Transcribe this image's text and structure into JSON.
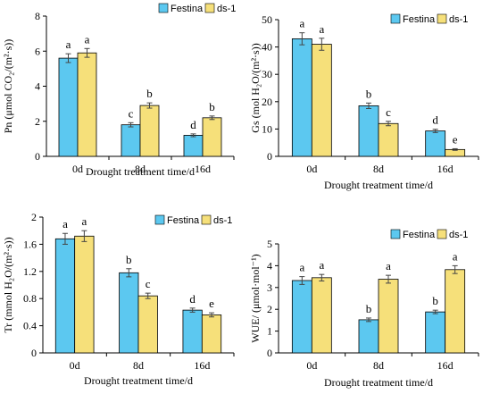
{
  "colors": {
    "Festina": "#5cc8f0",
    "ds-1": "#f6e07a",
    "stroke": "#000000",
    "error": "#e8433a"
  },
  "legend": [
    "Festina",
    "ds-1"
  ],
  "chart_data": [
    {
      "id": "pn",
      "type": "bar",
      "ylabel": "Pn (μmol CO₂/(m²·s))",
      "xlabel": "Drought treatment time/d",
      "categories": [
        "0d",
        "8d",
        "16d"
      ],
      "ylim": [
        0,
        8
      ],
      "yticks": [
        0,
        2,
        4,
        6,
        8
      ],
      "ytick_labels": [
        "0",
        "2",
        "4",
        "6",
        "8"
      ],
      "legend_position": "top-right",
      "series": [
        {
          "name": "Festina",
          "values": [
            5.6,
            1.8,
            1.2
          ],
          "errors": [
            0.25,
            0.12,
            0.08
          ],
          "letters": [
            "a",
            "c",
            "d"
          ]
        },
        {
          "name": "ds-1",
          "values": [
            5.9,
            2.9,
            2.2
          ],
          "errors": [
            0.25,
            0.15,
            0.1
          ],
          "letters": [
            "a",
            "b",
            "b"
          ]
        }
      ]
    },
    {
      "id": "gs",
      "type": "bar",
      "ylabel": "Gs (mol H₂O/(m²·s))",
      "xlabel": "Drought treatment time/d",
      "categories": [
        "0d",
        "8d",
        "16d"
      ],
      "ylim": [
        0,
        50
      ],
      "yticks": [
        0,
        10,
        20,
        30,
        40,
        50
      ],
      "ytick_labels": [
        "0",
        "10",
        "20",
        "30",
        "40",
        "50"
      ],
      "legend_position": "top-right",
      "series": [
        {
          "name": "Festina",
          "values": [
            43,
            18.5,
            9.3
          ],
          "errors": [
            2.2,
            1.0,
            0.6
          ],
          "letters": [
            "a",
            "b",
            "d"
          ]
        },
        {
          "name": "ds-1",
          "values": [
            41,
            12,
            2.5
          ],
          "errors": [
            2.2,
            0.8,
            0.3
          ],
          "letters": [
            "a",
            "c",
            "e"
          ]
        }
      ]
    },
    {
      "id": "tr",
      "type": "bar",
      "ylabel": "Tr (mmol H₂O/(m²·s))",
      "xlabel": "Drought treatment time/d",
      "categories": [
        "0d",
        "8d",
        "16d"
      ],
      "ylim": [
        0,
        2
      ],
      "yticks": [
        0,
        0.4,
        0.8,
        1.2,
        1.6,
        2
      ],
      "ytick_labels": [
        "0",
        "0.4",
        "0.8",
        "1.2",
        "1.6",
        "2"
      ],
      "legend_position": "top-right",
      "series": [
        {
          "name": "Festina",
          "values": [
            1.68,
            1.18,
            0.63
          ],
          "errors": [
            0.08,
            0.06,
            0.03
          ],
          "letters": [
            "a",
            "b",
            "d"
          ]
        },
        {
          "name": "ds-1",
          "values": [
            1.72,
            0.84,
            0.56
          ],
          "errors": [
            0.08,
            0.04,
            0.03
          ],
          "letters": [
            "a",
            "c",
            "e"
          ]
        }
      ]
    },
    {
      "id": "wue",
      "type": "bar",
      "ylabel": "WUE/ (μmol·mol⁻¹)",
      "xlabel": "Drought treatment time/d",
      "categories": [
        "0d",
        "8d",
        "16d"
      ],
      "ylim": [
        0,
        5
      ],
      "yticks": [
        0,
        1,
        2,
        3,
        4,
        5
      ],
      "ytick_labels": [
        "0",
        "1",
        "2",
        "3",
        "4",
        "5"
      ],
      "legend_position": "top-right",
      "series": [
        {
          "name": "Festina",
          "values": [
            3.32,
            1.52,
            1.88
          ],
          "errors": [
            0.18,
            0.08,
            0.08
          ],
          "letters": [
            "a",
            "b",
            "b"
          ]
        },
        {
          "name": "ds-1",
          "values": [
            3.45,
            3.38,
            3.82
          ],
          "errors": [
            0.15,
            0.18,
            0.18
          ],
          "letters": [
            "a",
            "a",
            "a"
          ]
        }
      ]
    }
  ]
}
